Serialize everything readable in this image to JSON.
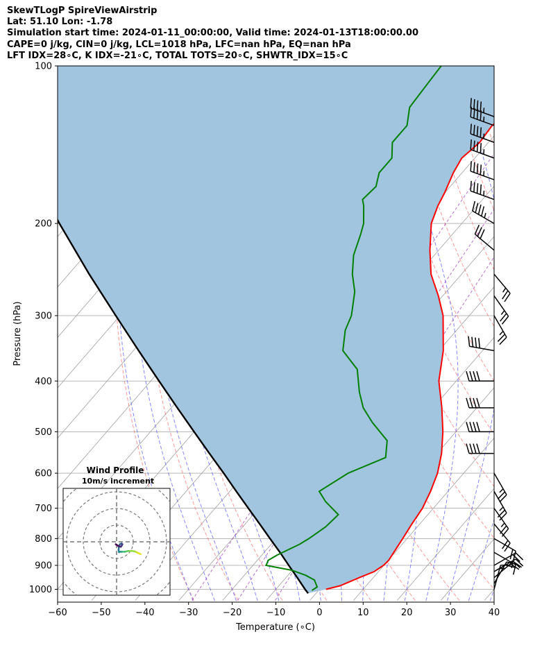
{
  "header": {
    "line1": "SkewTLogP SpireViewAirstrip",
    "line2": "Lat: 51.10   Lon: -1.78",
    "line3": "Simulation start time: 2024-01-11_00:00:00, Valid time: 2024-01-13T18:00:00.00",
    "line4": "CAPE=0 j/kg, CIN=0 j/kg, LCL=1018 hPa, LFC=nan hPa, EQ=nan hPa",
    "line5": "LFT IDX=28∘C, K IDX=-21∘C, TOTAL TOTS=20∘C, SHWTR_IDX=15∘C"
  },
  "chart_data": {
    "type": "line",
    "subtype": "skew-T log-P diagram",
    "xlabel": "Temperature (∘C)",
    "ylabel": "Pressure (hPa)",
    "xlim": [
      -60,
      40
    ],
    "ylim": [
      1050,
      100
    ],
    "y_scale": "log",
    "x_ticks": [
      -60,
      -50,
      -40,
      -30,
      -20,
      -10,
      0,
      10,
      20,
      30,
      40
    ],
    "y_ticks": [
      100,
      200,
      300,
      400,
      500,
      600,
      700,
      800,
      900,
      1000
    ],
    "grid": true,
    "colors": {
      "temperature": "#ff0000",
      "dewpoint": "#008000",
      "parcel": "#000000",
      "shading": "#a2c5df",
      "dry_adiabats": "#ff6060",
      "moist_adiabats": "#5050ff",
      "mixing_ratio": "#a030c0",
      "isotherms": "#a0a0a0"
    },
    "series": [
      {
        "role": "temperature",
        "pressure": [
          1000,
          985,
          950,
          925,
          900,
          880,
          850,
          800,
          750,
          700,
          650,
          600,
          550,
          500,
          450,
          400,
          350,
          300,
          275,
          250,
          225,
          200,
          185,
          175,
          160,
          150,
          140,
          130,
          120,
          110,
          100
        ],
        "temperature": [
          1.5,
          4.0,
          6.8,
          9.0,
          9.9,
          10.1,
          9.7,
          9.0,
          8.2,
          7.5,
          6.0,
          4.0,
          1.0,
          -3.0,
          -8.0,
          -14.0,
          -19.0,
          -26.0,
          -31.0,
          -37.0,
          -42.0,
          -47.0,
          -49.0,
          -50.0,
          -52.0,
          -53.0,
          -52.0,
          -52.5,
          -51.0,
          -52.0,
          -53.0
        ]
      },
      {
        "role": "dewpoint",
        "pressure": [
          1005,
          990,
          960,
          940,
          920,
          900,
          880,
          860,
          840,
          820,
          800,
          760,
          720,
          680,
          650,
          600,
          560,
          520,
          480,
          450,
          420,
          380,
          350,
          320,
          300,
          270,
          250,
          230,
          210,
          200,
          185,
          180,
          170,
          160,
          150,
          140,
          130,
          120,
          110,
          100
        ],
        "temperature": [
          -1.5,
          -1.0,
          -3.0,
          -6.0,
          -10.0,
          -17.0,
          -17.5,
          -16.5,
          -15.0,
          -13.5,
          -12.5,
          -11.0,
          -10.5,
          -16.0,
          -19.5,
          -16.5,
          -11.0,
          -14.0,
          -21.0,
          -26.0,
          -30.0,
          -35.0,
          -42.0,
          -45.5,
          -47.0,
          -51.0,
          -55.0,
          -58.5,
          -61.0,
          -62.5,
          -66.0,
          -67.5,
          -67.0,
          -69.0,
          -69.0,
          -72.0,
          -72.0,
          -75.0,
          -75.5,
          -76.0
        ]
      },
      {
        "role": "parcel",
        "pressure": [
          1018,
          1000,
          950,
          900,
          850,
          800,
          750,
          700,
          650,
          600,
          550,
          500,
          450,
          400,
          350,
          300,
          250,
          200,
          150,
          100
        ],
        "temperature": [
          -1.8,
          -3.3,
          -7.4,
          -11.8,
          -16.4,
          -21.4,
          -26.7,
          -32.4,
          -38.5,
          -45.0,
          -52.2,
          -60.0,
          -68.6,
          -78.1,
          -88.8,
          -101.0,
          -115.3,
          -132.2,
          -153.3,
          -182.0
        ]
      }
    ],
    "wind_barbs": {
      "pressure": [
        1000,
        975,
        950,
        925,
        900,
        850,
        800,
        750,
        700,
        650,
        600,
        550,
        500,
        450,
        400,
        350,
        300,
        275,
        250,
        225,
        200,
        180,
        165,
        150,
        140,
        130,
        125
      ],
      "speed_kt": [
        15,
        20,
        20,
        20,
        20,
        15,
        20,
        20,
        25,
        25,
        25,
        40,
        40,
        40,
        40,
        40,
        25,
        25,
        25,
        30,
        45,
        45,
        45,
        45,
        45,
        45,
        45
      ],
      "direction_deg": [
        15,
        30,
        50,
        60,
        60,
        120,
        120,
        140,
        145,
        150,
        150,
        270,
        270,
        270,
        270,
        280,
        150,
        145,
        140,
        310,
        300,
        290,
        290,
        290,
        290,
        290,
        290
      ]
    },
    "hodograph": {
      "title": "Wind Profile",
      "subtitle": "10m/s increment",
      "u": [
        14.5,
        13.5,
        12.5,
        11.0,
        9.0,
        7.0,
        5.0,
        3.0,
        2.0,
        1.5,
        1.2,
        1.5,
        2.0,
        3.0,
        3.5,
        3.0,
        2.5,
        1.0,
        -0.5
      ],
      "v": [
        -7.5,
        -7.0,
        -6.5,
        -5.8,
        -5.5,
        -5.5,
        -6.0,
        -6.0,
        -6.0,
        -6.3,
        -5.0,
        -2.5,
        -1.5,
        -1.0,
        -1.5,
        -2.5,
        -3.0,
        -2.5,
        -1.5
      ]
    }
  }
}
